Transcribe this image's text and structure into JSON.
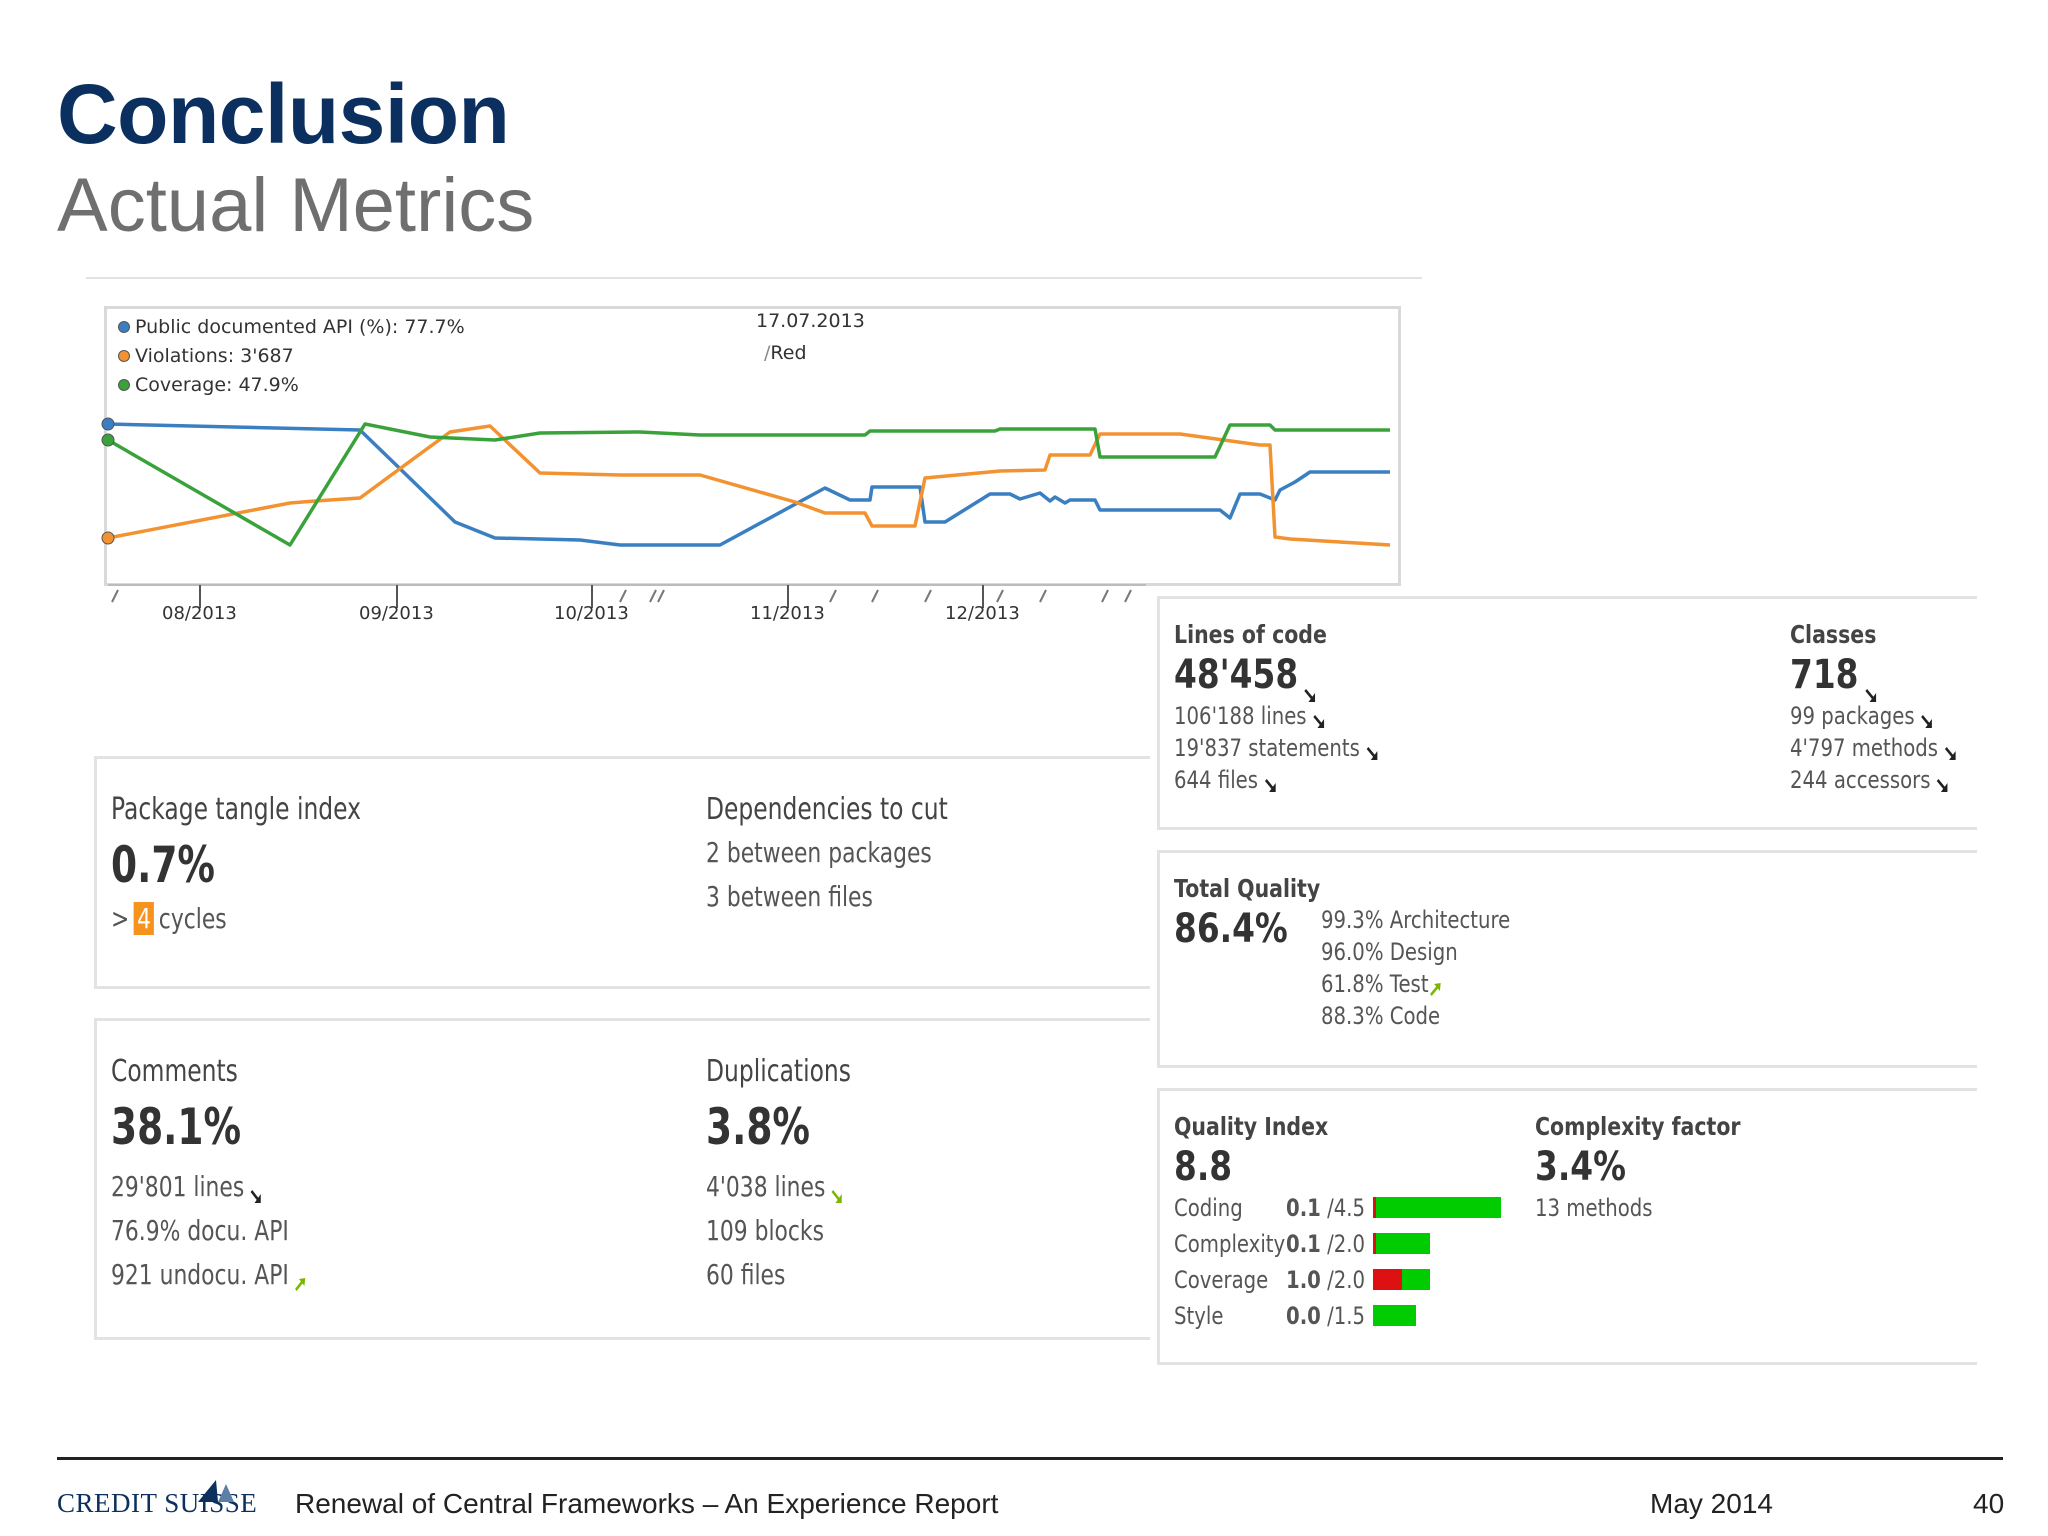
{
  "title": "Conclusion",
  "subtitle": "Actual Metrics",
  "chart": {
    "legend": [
      {
        "label": "Public documented API (%): 77.7%",
        "color": "#3a7fc1"
      },
      {
        "label": "Violations: 3'687",
        "color": "#f39230"
      },
      {
        "label": "Coverage: 47.9%",
        "color": "#3aa23a"
      }
    ],
    "date": "17.07.2013",
    "note": "Red",
    "x_labels": [
      "08/2013",
      "09/2013",
      "10/2013",
      "11/2013",
      "12/2013"
    ]
  },
  "chart_data": {
    "type": "line",
    "x": [
      "08/2013",
      "09/2013",
      "10/2013",
      "11/2013",
      "12/2013"
    ],
    "series": [
      {
        "name": "Public documented API (%)",
        "values": [
          77.7,
          77.5,
          74.0,
          75.5,
          76.0
        ]
      },
      {
        "name": "Violations",
        "values": [
          2.2,
          3.5,
          3.0,
          3.2,
          3.7
        ]
      },
      {
        "name": "Coverage",
        "values": [
          47.9,
          48.5,
          48.5,
          47.5,
          47.9
        ]
      }
    ],
    "grid": false,
    "legend_position": "top-left"
  },
  "package_tangle": {
    "label": "Package tangle index",
    "value": "0.7%",
    "prefix": ">",
    "cycles_count": "4",
    "cycles_label": "cycles"
  },
  "dependencies": {
    "label": "Dependencies to cut",
    "line1": "2 between packages",
    "line2": "3 between files"
  },
  "comments": {
    "label": "Comments",
    "value": "38.1%",
    "line1": "29'801 lines",
    "line2": "76.9% docu. API",
    "line3": "921 undocu. API"
  },
  "duplications": {
    "label": "Duplications",
    "value": "3.8%",
    "line1": "4'038 lines",
    "line2": "109 blocks",
    "line3": "60 files"
  },
  "lines_of_code": {
    "label": "Lines of code",
    "value": "48'458",
    "line1": "106'188 lines",
    "line2": "19'837 statements",
    "line3": "644 files"
  },
  "classes": {
    "label": "Classes",
    "value": "718",
    "line1": "99 packages",
    "line2": "4'797 methods",
    "line3": "244 accessors"
  },
  "total_quality": {
    "label": "Total Quality",
    "value": "86.4%",
    "items": [
      "99.3% Architecture",
      "96.0% Design",
      "61.8% Test",
      "88.3% Code"
    ]
  },
  "quality_index": {
    "label": "Quality Index",
    "value": "8.8",
    "rows": [
      {
        "name": "Coding",
        "score": "0.1",
        "max": "/4.5",
        "red_fraction": 0.022,
        "max_value": 4.5
      },
      {
        "name": "Complexity",
        "score": "0.1",
        "max": "/2.0",
        "red_fraction": 0.05,
        "max_value": 2.0
      },
      {
        "name": "Coverage",
        "score": "1.0",
        "max": "/2.0",
        "red_fraction": 0.5,
        "max_value": 2.0
      },
      {
        "name": "Style",
        "score": "0.0",
        "max": "/1.5",
        "red_fraction": 0.0,
        "max_value": 1.5
      }
    ]
  },
  "complexity_factor": {
    "label": "Complexity factor",
    "value": "3.4%",
    "line1": "13 methods"
  },
  "colors": {
    "title": "#0b2f5e",
    "bar_green": "#00cc00",
    "bar_red": "#dd1111",
    "trend_green": "#7ab800"
  },
  "footer": {
    "logo": "CREDIT SUISSE",
    "report": "Renewal of Central Frameworks – An Experience Report",
    "date": "May 2014",
    "page": "40"
  }
}
